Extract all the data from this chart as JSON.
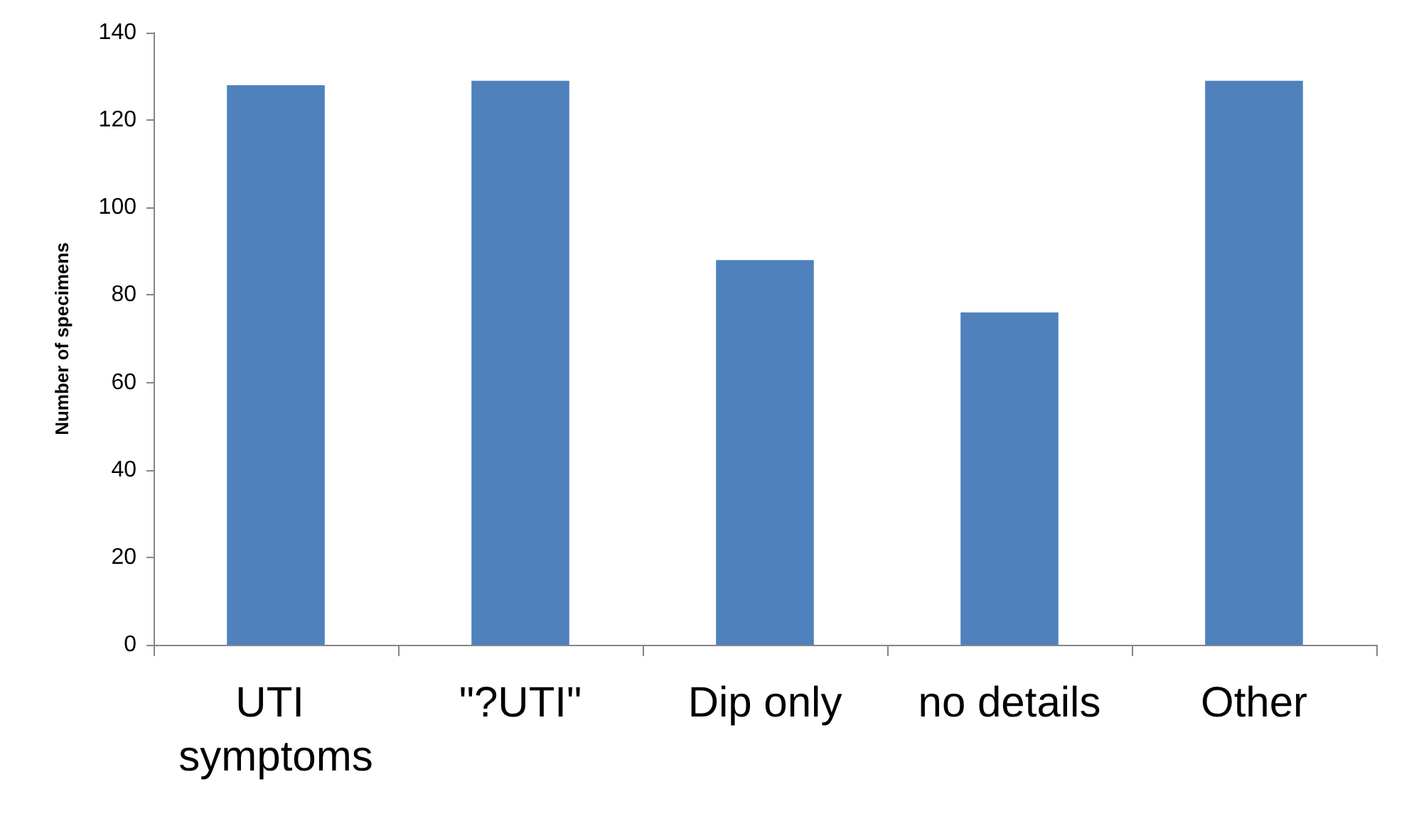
{
  "chart_data": {
    "type": "bar",
    "ylabel": "Number of specimens",
    "categories": [
      "UTI symptoms",
      "\"?UTI\"",
      "Dip only",
      "no details",
      "Other"
    ],
    "values": [
      128,
      129,
      88,
      76,
      129
    ],
    "color": "#4f81bd",
    "ylim": [
      0,
      140
    ],
    "yticks": [
      0,
      20,
      40,
      60,
      80,
      100,
      120,
      140
    ],
    "grid": false
  }
}
